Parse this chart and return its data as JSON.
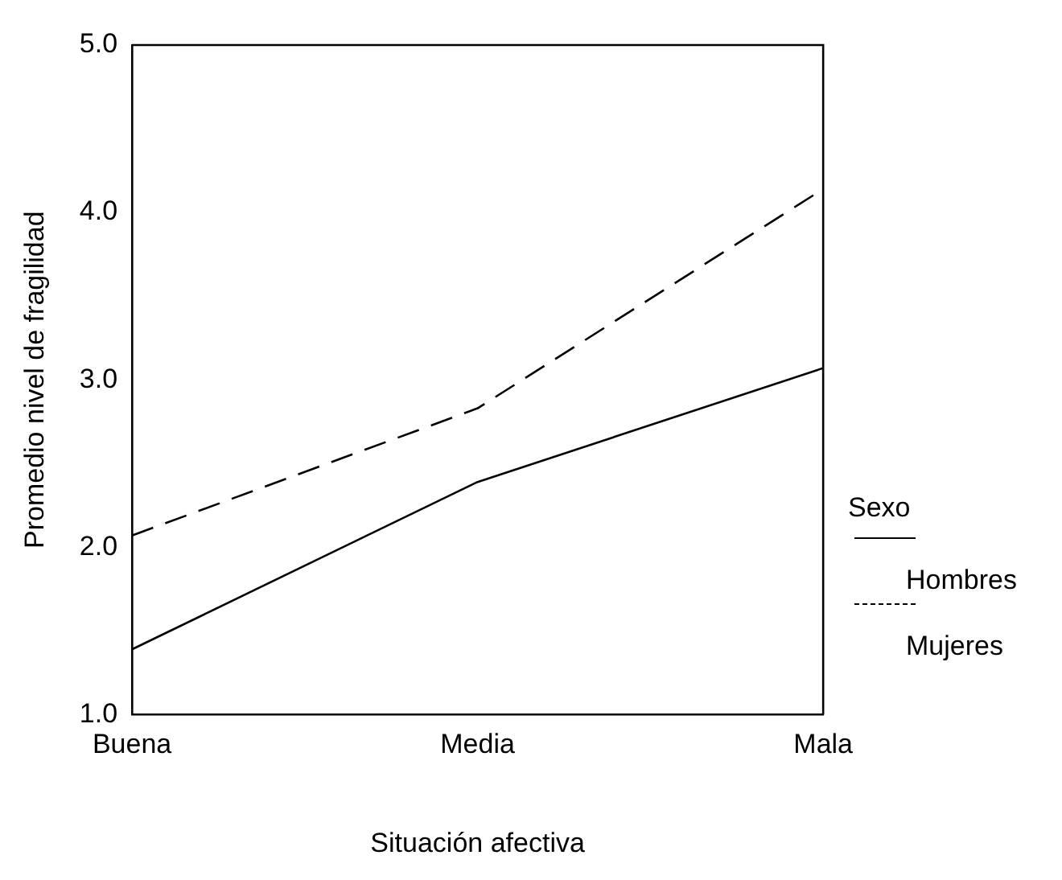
{
  "chart_data": {
    "type": "line",
    "xlabel": "Situación afectiva",
    "ylabel": "Promedio nivel de fragilidad",
    "legend_title": "Sexo",
    "categories": [
      "Buena",
      "Media",
      "Mala"
    ],
    "series": [
      {
        "name": "Hombres",
        "color": "#000000",
        "line_style": "solid",
        "values": [
          1.39,
          2.39,
          3.07
        ]
      },
      {
        "name": "Mujeres",
        "color": "#000000",
        "line_style": "dashed",
        "values": [
          2.07,
          2.83,
          4.14
        ]
      }
    ],
    "ylim": [
      1,
      5
    ],
    "yticks": [
      {
        "value": 1,
        "label": "1.0"
      },
      {
        "value": 2,
        "label": "2.0"
      },
      {
        "value": 3,
        "label": "3.0"
      },
      {
        "value": 4,
        "label": "4.0"
      },
      {
        "value": 5,
        "label": "5.0"
      }
    ],
    "grid": false,
    "legend": "right",
    "marker": "none"
  }
}
